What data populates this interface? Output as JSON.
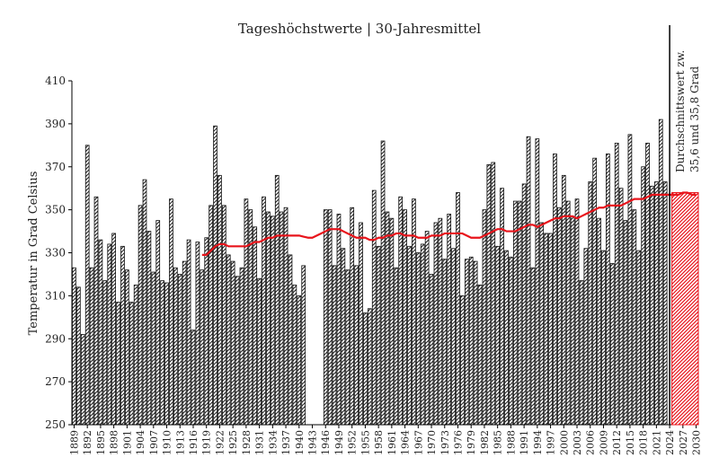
{
  "chart_data": {
    "type": "bar",
    "title": "Tageshöchstwerte | 30-Jahresmittel",
    "ylabel": "Temperatur in Grad Celsius",
    "xlabel": "",
    "ylim": [
      250,
      410
    ],
    "yticks": [
      250,
      270,
      290,
      310,
      330,
      350,
      370,
      390,
      410
    ],
    "x_start": 1889,
    "x_end": 2030,
    "xtick_labels": [
      "1889",
      "1892",
      "1895",
      "1898",
      "1901",
      "1904",
      "1907",
      "1910",
      "1913",
      "1916",
      "1919",
      "1922",
      "1925",
      "1928",
      "1931",
      "1934",
      "1937",
      "1940",
      "1943",
      "1946",
      "1949",
      "1952",
      "1955",
      "1958",
      "1961",
      "1964",
      "1967",
      "1970",
      "1973",
      "1976",
      "1979",
      "1982",
      "1985",
      "1988",
      "1991",
      "1994",
      "1997",
      "2000",
      "2003",
      "2006",
      "2009",
      "2012",
      "2015",
      "2018",
      "2021",
      "2024",
      "2027",
      "2030"
    ],
    "grid": false,
    "legend": "none",
    "series": [
      {
        "type": "bar",
        "years_start": 1889,
        "values": [
          323,
          314,
          292,
          380,
          323,
          356,
          336,
          317,
          334,
          339,
          307,
          333,
          322,
          307,
          315,
          352,
          364,
          340,
          321,
          345,
          317,
          316,
          355,
          323,
          320,
          326,
          336,
          294,
          335,
          322,
          337,
          352,
          389,
          366,
          352,
          329,
          326,
          319,
          323,
          355,
          350,
          342,
          318,
          356,
          349,
          347,
          366,
          349,
          351,
          329,
          315,
          310,
          324,
          null,
          null,
          null,
          null,
          350,
          350,
          324,
          348,
          332,
          322,
          351,
          324,
          344,
          302,
          304,
          359,
          333,
          382,
          349,
          346,
          323,
          356,
          350,
          333,
          355,
          330,
          334,
          340,
          320,
          344,
          346,
          327,
          348,
          332,
          358,
          310,
          327,
          328,
          326,
          315,
          350,
          371,
          372,
          333,
          360,
          331,
          328,
          354,
          354,
          362,
          384,
          323,
          383,
          344,
          339,
          339,
          376,
          351,
          366,
          354,
          347,
          355,
          317,
          332,
          363,
          374,
          346,
          331,
          376,
          325,
          381,
          360,
          345,
          385,
          350,
          331,
          370,
          381,
          361,
          363,
          392,
          363
        ]
      },
      {
        "type": "line",
        "color": "#e8141b",
        "years_start": 1918,
        "values": [
          329,
          329,
          331,
          333,
          334,
          334,
          333,
          333,
          333,
          333,
          333,
          334,
          335,
          335,
          336,
          337,
          337,
          338,
          338,
          338,
          338,
          338,
          338,
          337.5,
          337,
          337,
          338,
          339,
          340,
          341,
          341,
          341,
          340,
          339,
          338,
          337,
          337,
          337,
          336,
          336,
          337,
          337,
          338,
          338,
          339,
          339,
          338,
          338,
          338,
          337,
          337,
          337,
          338,
          338,
          338,
          339,
          339,
          339,
          339,
          339,
          338,
          337,
          337,
          337,
          338,
          339,
          340,
          341,
          341,
          340,
          340,
          340,
          341,
          342,
          343,
          343,
          342,
          343,
          344,
          345,
          346,
          346,
          347,
          347,
          347,
          346,
          347,
          348,
          349,
          350,
          351,
          351,
          352,
          352,
          352,
          352,
          353,
          354,
          355,
          355,
          355,
          356,
          357,
          357,
          357
        ]
      },
      {
        "type": "projection",
        "color": "#e8141b",
        "from_year": 2025,
        "to_year": 2030,
        "values": [
          357,
          357,
          358,
          358,
          357,
          357
        ]
      }
    ],
    "annotation": "Durchschnittswert zw. 35,6 und 35,8 Grad",
    "annotation_year": 2024
  }
}
